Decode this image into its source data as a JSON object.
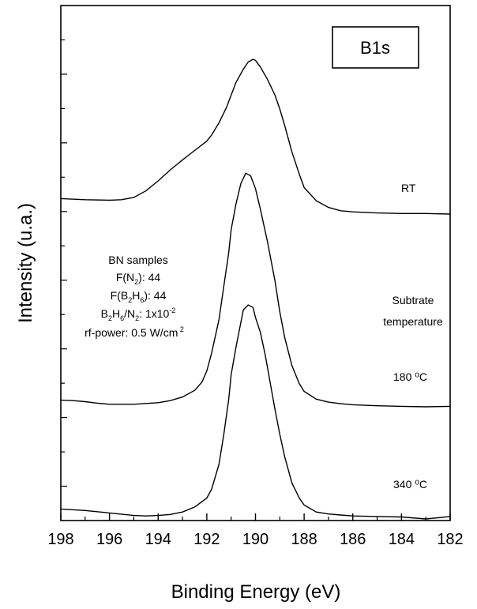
{
  "chart_data": {
    "type": "line",
    "title": "",
    "xlabel": "Binding Energy (eV)",
    "ylabel": "Intensity (u.a.)",
    "xlim": [
      198,
      182
    ],
    "x_reversed": true,
    "x_ticks": [
      "198",
      "196",
      "194",
      "192",
      "190",
      "188",
      "186",
      "184",
      "182"
    ],
    "y_ticks_labeled": false,
    "grid": false,
    "badge": "B1s",
    "series": [
      {
        "name": "RT",
        "x": [
          198,
          197,
          196,
          195.5,
          195,
          194.5,
          194,
          193.5,
          193,
          192.5,
          192,
          191.8,
          191.5,
          191.2,
          191,
          190.8,
          190.5,
          190.3,
          190.1,
          190.0,
          189.8,
          189.5,
          189.2,
          189,
          188.8,
          188.5,
          188.2,
          188,
          187.5,
          187,
          186.5,
          186,
          185.5,
          185,
          184,
          183,
          182
        ],
        "y": [
          0.28,
          0.26,
          0.25,
          0.26,
          0.3,
          0.42,
          0.6,
          0.8,
          0.98,
          1.15,
          1.32,
          1.43,
          1.65,
          1.92,
          2.15,
          2.38,
          2.62,
          2.75,
          2.8,
          2.78,
          2.66,
          2.43,
          2.15,
          1.9,
          1.6,
          1.12,
          0.72,
          0.48,
          0.24,
          0.12,
          0.06,
          0.04,
          0.03,
          0.02,
          0.01,
          0.01,
          0.0
        ]
      },
      {
        "name": "180 ⁰C",
        "x": [
          198,
          197.5,
          197,
          196.5,
          196,
          195,
          194,
          193.5,
          193,
          192.5,
          192.2,
          192,
          191.8,
          191.5,
          191.3,
          191.1,
          191,
          190.8,
          190.6,
          190.4,
          190.2,
          190.0,
          189.8,
          189.5,
          189.2,
          189,
          188.8,
          188.5,
          188.2,
          188,
          187.5,
          187,
          186.5,
          186,
          185,
          184,
          183,
          182
        ],
        "y": [
          0.13,
          0.12,
          0.1,
          0.07,
          0.05,
          0.05,
          0.08,
          0.12,
          0.19,
          0.32,
          0.48,
          0.7,
          1.05,
          1.7,
          2.35,
          3.0,
          3.45,
          3.95,
          4.35,
          4.55,
          4.5,
          4.25,
          3.85,
          3.2,
          2.45,
          1.85,
          1.35,
          0.8,
          0.45,
          0.3,
          0.15,
          0.09,
          0.06,
          0.04,
          0.02,
          0.01,
          0.0,
          0.01
        ]
      },
      {
        "name": "340 ⁰C",
        "x": [
          198,
          197,
          196,
          195,
          194.5,
          194,
          193.5,
          193,
          192.5,
          192,
          191.8,
          191.5,
          191.3,
          191.1,
          191,
          190.8,
          190.6,
          190.5,
          190.3,
          190.1,
          190.0,
          189.8,
          189.6,
          189.4,
          189.2,
          189,
          188.8,
          188.5,
          188.2,
          188,
          187.5,
          187,
          186.5,
          186,
          185,
          184,
          183,
          182
        ],
        "y": [
          0.2,
          0.17,
          0.12,
          0.07,
          0.06,
          0.07,
          0.09,
          0.14,
          0.24,
          0.42,
          0.6,
          1.1,
          1.7,
          2.4,
          2.9,
          3.45,
          3.95,
          4.2,
          4.3,
          4.25,
          4.05,
          3.75,
          3.3,
          2.75,
          2.2,
          1.7,
          1.25,
          0.72,
          0.42,
          0.28,
          0.14,
          0.1,
          0.08,
          0.06,
          0.05,
          0.04,
          0.0,
          0.05
        ]
      }
    ],
    "annotations": {
      "legend_title": [
        "Subtrate",
        "temperature"
      ],
      "sample_block": [
        {
          "main": "BN samples"
        },
        {
          "pre": "F(N",
          "sub": "2",
          "post": "): 44"
        },
        {
          "pre": "F(B",
          "sub": "2",
          "mid": "H",
          "sub2": "6",
          "post": "): 44"
        },
        {
          "pre": "B",
          "sub": "2",
          "mid": "H",
          "sub2": "6",
          "mid2": "/N",
          "sub3": "2",
          "post": ": 1x10",
          "sup": "-2"
        },
        {
          "pre": "rf-power: 0.5 W/cm",
          "sup": " 2"
        }
      ]
    }
  }
}
